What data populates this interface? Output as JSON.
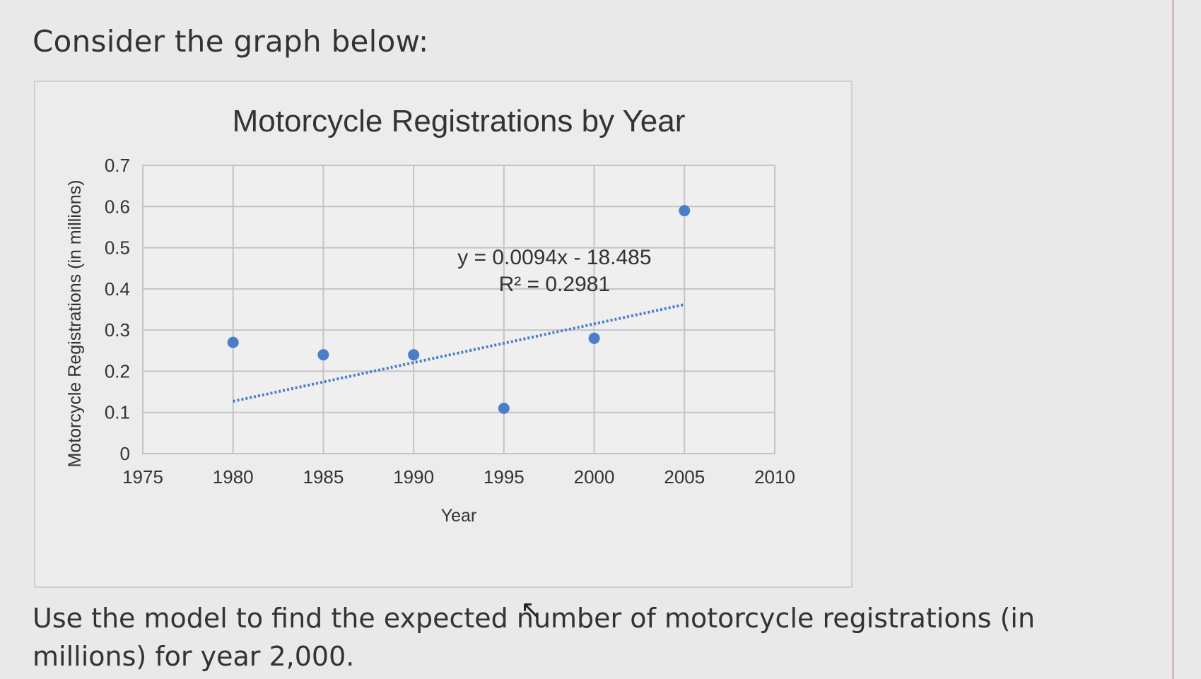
{
  "prompt": "Consider the graph below:",
  "question": "Use the model to find the expected number of motorcycle registrations (in millions) for year 2,000.",
  "chart_data": {
    "type": "scatter",
    "title": "Motorcycle Registrations by Year",
    "xlabel": "Year",
    "ylabel": "Motorcycle Registrations (in millions)",
    "xlim": [
      1975,
      2010
    ],
    "ylim": [
      0,
      0.7
    ],
    "x_ticks": [
      "1975",
      "1980",
      "1985",
      "1990",
      "1995",
      "2000",
      "2005",
      "2010"
    ],
    "y_ticks": [
      "0",
      "0.1",
      "0.2",
      "0.3",
      "0.4",
      "0.5",
      "0.6",
      "0.7"
    ],
    "grid": true,
    "series": [
      {
        "x": [
          1980,
          1985,
          1990,
          1995,
          2000,
          2005
        ],
        "y": [
          0.27,
          0.24,
          0.24,
          0.11,
          0.28,
          0.59
        ],
        "color": "#4a7ec8"
      }
    ],
    "trendline": {
      "x": [
        1980,
        2005
      ],
      "slope": 0.0094,
      "intercept": -18.485,
      "color": "#4a7ec8",
      "style": "dotted",
      "equation": "y = 0.0094x - 18.485",
      "r_squared": "R² = 0.2981"
    }
  }
}
